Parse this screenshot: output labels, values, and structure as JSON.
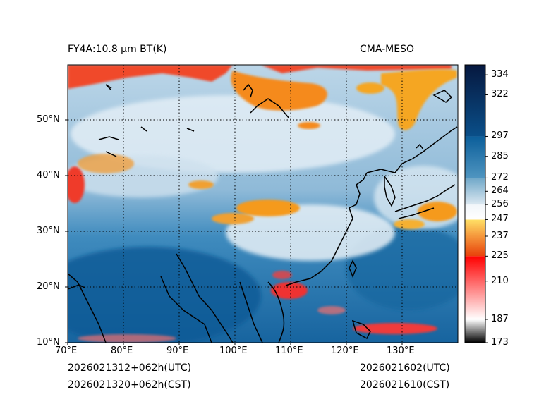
{
  "header": {
    "product_title": "FY4A:10.8 µm BT(K)",
    "source": "CMA-MESO"
  },
  "footer": {
    "init_utc": "2026021312+062h(UTC)",
    "init_cst": "2026021320+062h(CST)",
    "valid_utc": "2026021602(UTC)",
    "valid_cst": "2026021610(CST)"
  },
  "map": {
    "lon_range": [
      70,
      140
    ],
    "lat_range": [
      10,
      60
    ],
    "lon_ticks": [
      {
        "value": 70,
        "label": "70°E"
      },
      {
        "value": 80,
        "label": "80°E"
      },
      {
        "value": 90,
        "label": "90°E"
      },
      {
        "value": 100,
        "label": "100°E"
      },
      {
        "value": 110,
        "label": "110°E"
      },
      {
        "value": 120,
        "label": "120°E"
      },
      {
        "value": 130,
        "label": "130°E"
      }
    ],
    "lat_ticks": [
      {
        "value": 10,
        "label": "10°N"
      },
      {
        "value": 20,
        "label": "20°N"
      },
      {
        "value": 30,
        "label": "30°N"
      },
      {
        "value": 40,
        "label": "40°N"
      },
      {
        "value": 50,
        "label": "50°N"
      }
    ],
    "gridlines": "dotted"
  },
  "colorbar": {
    "unit": "K",
    "range": [
      173,
      340
    ],
    "ticks": [
      {
        "value": 334,
        "label": "334"
      },
      {
        "value": 322,
        "label": "322"
      },
      {
        "value": 297,
        "label": "297"
      },
      {
        "value": 285,
        "label": "285"
      },
      {
        "value": 272,
        "label": "272"
      },
      {
        "value": 264,
        "label": "264"
      },
      {
        "value": 256,
        "label": "256"
      },
      {
        "value": 247,
        "label": "247"
      },
      {
        "value": 237,
        "label": "237"
      },
      {
        "value": 225,
        "label": "225"
      },
      {
        "value": 210,
        "label": "210"
      },
      {
        "value": 187,
        "label": "187"
      },
      {
        "value": 173,
        "label": "173"
      }
    ],
    "segments": [
      {
        "from": 173,
        "to": 187,
        "colors": [
          "#000000",
          "#ffffff"
        ]
      },
      {
        "from": 187,
        "to": 225,
        "colors": [
          "#ffffff",
          "#ff0000"
        ]
      },
      {
        "from": 225,
        "to": 247,
        "colors": [
          "#e8400a",
          "#ffe066"
        ]
      },
      {
        "from": 247,
        "to": 256,
        "colors": [
          "#ffffff",
          "#f2f6fa"
        ]
      },
      {
        "from": 256,
        "to": 272,
        "colors": [
          "#dce8f1",
          "#6fa7c8"
        ]
      },
      {
        "from": 272,
        "to": 297,
        "colors": [
          "#4f95c0",
          "#0b5e9a"
        ]
      },
      {
        "from": 297,
        "to": 340,
        "colors": [
          "#0a4f89",
          "#06183f"
        ]
      }
    ]
  }
}
